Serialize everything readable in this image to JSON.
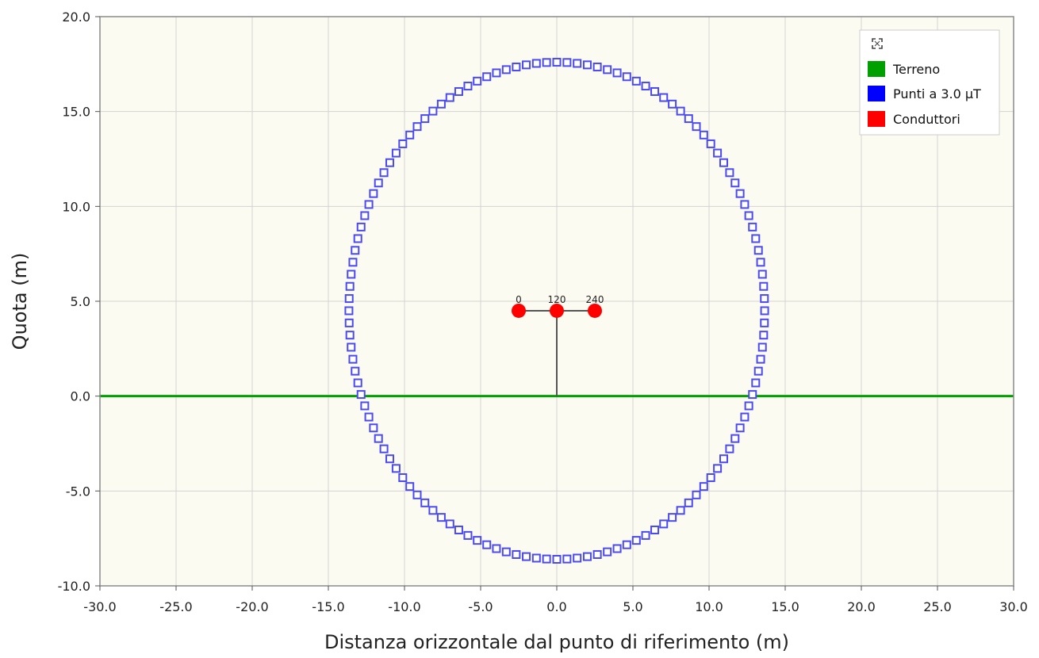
{
  "chart_data": {
    "type": "scatter",
    "xlabel": "Distanza orizzontale dal punto di riferimento (m)",
    "ylabel": "Quota (m)",
    "xlim": [
      -30,
      30
    ],
    "ylim": [
      -10,
      20
    ],
    "x_ticks": [
      "-30.0",
      "-25.0",
      "-20.0",
      "-15.0",
      "-10.0",
      "-5.0",
      "0.0",
      "5.0",
      "10.0",
      "15.0",
      "20.0",
      "25.0",
      "30.0"
    ],
    "y_ticks": [
      "-10.0",
      "-5.0",
      "0.0",
      "5.0",
      "10.0",
      "15.0",
      "20.0"
    ],
    "grid": true,
    "legend_position": "top-right",
    "legend": [
      {
        "name": "Terreno",
        "color": "#00a000"
      },
      {
        "name": "Punti a 3.0 µT",
        "color": "#0000ff"
      },
      {
        "name": "Conduttori",
        "color": "#ff0000"
      }
    ],
    "ground": {
      "y": 0,
      "color": "#00a000"
    },
    "support": {
      "x": 0,
      "y_bottom": 0,
      "y_top": 4.5,
      "arm_from": -2.5,
      "arm_to": 2.5,
      "color": "#555555"
    },
    "conductors": [
      {
        "label": "0",
        "x": -2.5,
        "y": 4.5
      },
      {
        "label": "120",
        "x": 0.0,
        "y": 4.5
      },
      {
        "label": "240",
        "x": 2.5,
        "y": 4.5
      }
    ],
    "contour": {
      "name": "Punti a 3.0 µT",
      "color": "#4a4af0",
      "center_x": 0.0,
      "center_y": 4.5,
      "radius_x": 13.65,
      "radius_y": 13.1,
      "points": 128
    }
  },
  "ui": {
    "expand_icon": "expand-icon",
    "plot_background": "#fcfbf2"
  }
}
